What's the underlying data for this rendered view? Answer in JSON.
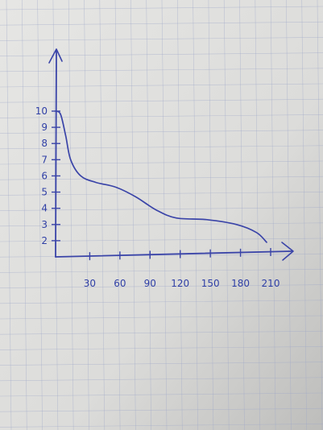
{
  "chart_data": {
    "type": "line",
    "title": "",
    "xlabel": "",
    "ylabel": "",
    "x_ticks": [
      30,
      60,
      90,
      120,
      150,
      180,
      210
    ],
    "x_tick_labels": [
      "30",
      "60",
      "90",
      "120",
      "150",
      "180",
      "210"
    ],
    "y_ticks": [
      2,
      3,
      4,
      5,
      6,
      7,
      8,
      9,
      10
    ],
    "y_tick_labels": [
      "2",
      "3",
      "4",
      "5",
      "6",
      "7",
      "8",
      "9",
      "10"
    ],
    "xlim": [
      0,
      240
    ],
    "ylim": [
      1,
      12
    ],
    "series": [
      {
        "x": [
          0,
          5,
          10,
          15,
          25,
          40,
          60,
          80,
          100,
          120,
          150,
          180,
          200,
          210
        ],
        "y": [
          10,
          9.8,
          8.5,
          7.0,
          6.0,
          5.6,
          5.3,
          4.7,
          3.9,
          3.4,
          3.3,
          3.0,
          2.5,
          1.9
        ]
      }
    ],
    "grid": true,
    "color": "#3a44a8"
  }
}
